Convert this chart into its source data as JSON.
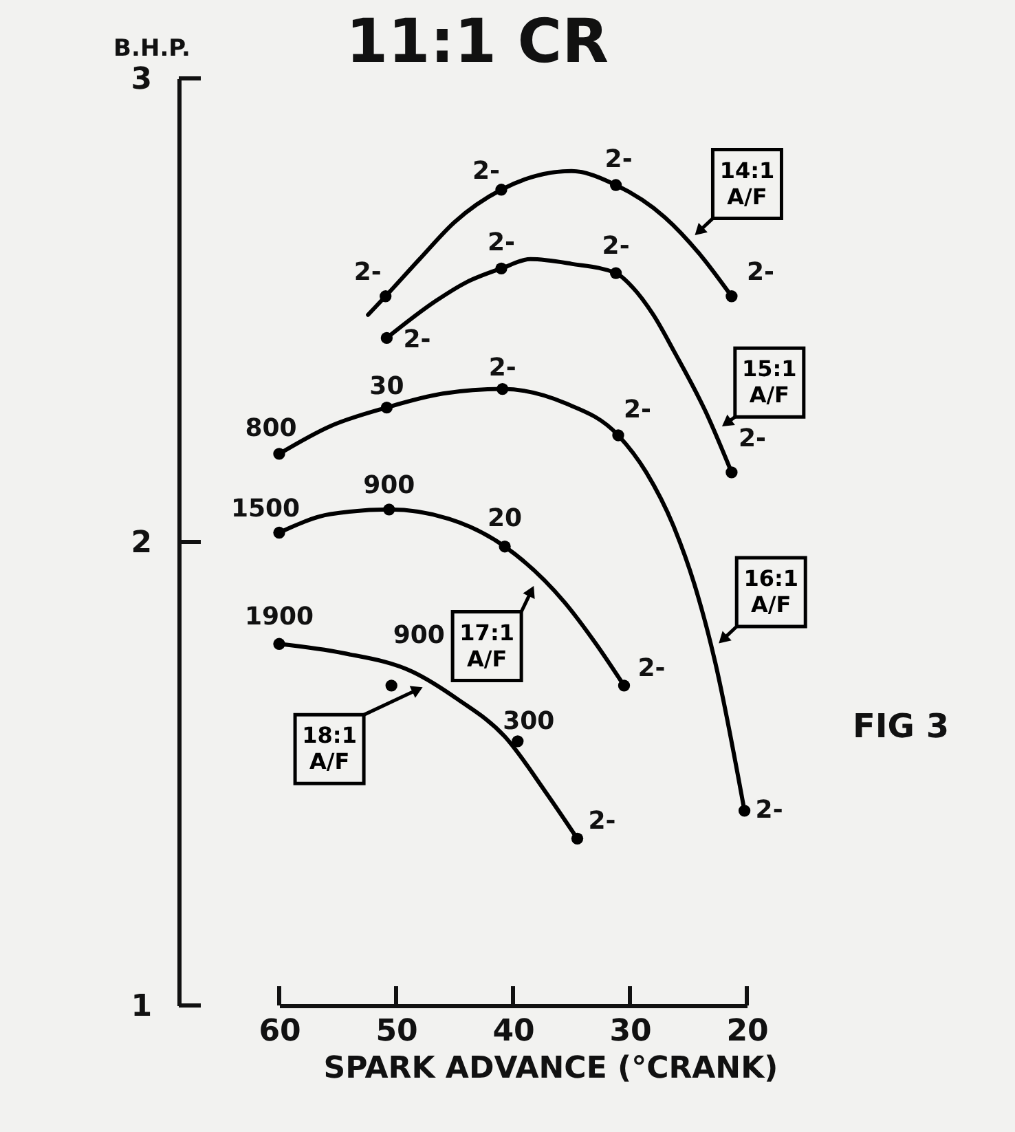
{
  "chart_data": {
    "type": "line",
    "title": "11:1 CR",
    "xlabel": "SPARK ADVANCE (°CRANK)",
    "ylabel": "B.H.P.",
    "xlim": [
      60,
      20
    ],
    "xticks": [
      60,
      50,
      40,
      30,
      20
    ],
    "ylim": [
      1,
      3
    ],
    "yticks": [
      1,
      2,
      3
    ],
    "series": [
      {
        "name": "14:1 A/F",
        "color": "#000000",
        "x": [
          52.4,
          50.9,
          48,
          45,
          41,
          38,
          35,
          31.2,
          27,
          24,
          21.3
        ],
        "values": [
          2.49,
          2.53,
          2.61,
          2.69,
          2.76,
          2.79,
          2.8,
          2.77,
          2.7,
          2.62,
          2.53
        ]
      },
      {
        "type": "scatter",
        "marker": "circle",
        "color": "#000000",
        "x": [
          50.9,
          41,
          31.2,
          21.3
        ],
        "values": [
          2.53,
          2.76,
          2.77,
          2.53
        ]
      },
      {
        "name": "15:1 A/F",
        "color": "#000000",
        "x": [
          50.8,
          46.6,
          44,
          41,
          38.5,
          35,
          31.2,
          29.8,
          28,
          26.2,
          23.5,
          21.3
        ],
        "values": [
          2.44,
          2.52,
          2.56,
          2.59,
          2.61,
          2.6,
          2.58,
          2.55,
          2.49,
          2.41,
          2.28,
          2.15
        ]
      },
      {
        "type": "scatter",
        "marker": "circle",
        "color": "#000000",
        "x": [
          50.8,
          41,
          31.2,
          21.3
        ],
        "values": [
          2.44,
          2.59,
          2.58,
          2.15
        ]
      },
      {
        "name": "16:1 A/F",
        "color": "#000000",
        "x": [
          60,
          55.6,
          50.8,
          46,
          40.9,
          35.6,
          31,
          28.6,
          26.2,
          24.5,
          22.7,
          20.2
        ],
        "values": [
          2.19,
          2.25,
          2.29,
          2.32,
          2.33,
          2.3,
          2.23,
          2.15,
          2.03,
          1.91,
          1.74,
          1.42
        ]
      },
      {
        "type": "scatter",
        "marker": "circle",
        "color": "#000000",
        "x": [
          60,
          50.8,
          40.9,
          31,
          20.2
        ],
        "values": [
          2.19,
          2.29,
          2.33,
          2.23,
          1.42
        ]
      },
      {
        "name": "17:1 A/F",
        "color": "#000000",
        "x": [
          60,
          55.6,
          50.6,
          45.5,
          40.7,
          35.6,
          32.9,
          30.5
        ],
        "values": [
          2.02,
          2.06,
          2.07,
          2.05,
          1.99,
          1.87,
          1.78,
          1.69
        ]
      },
      {
        "type": "scatter",
        "marker": "circle",
        "color": "#000000",
        "x": [
          60,
          50.6,
          40.7,
          30.5
        ],
        "values": [
          2.02,
          2.07,
          1.99,
          1.69
        ]
      },
      {
        "name": "18:1 A/F",
        "color": "#000000",
        "x": [
          60,
          54.5,
          48.6,
          44.7,
          40.7,
          37.2,
          34.5
        ],
        "values": [
          1.78,
          1.76,
          1.72,
          1.66,
          1.58,
          1.46,
          1.36
        ]
      },
      {
        "type": "scatter",
        "marker": "circle",
        "color": "#000000",
        "x": [
          60,
          50.4,
          39.6,
          34.5
        ],
        "values": [
          1.78,
          1.69,
          1.57,
          1.36
        ]
      }
    ],
    "annotations": [
      {
        "text": "2-",
        "x": 50.9,
        "y": 2.53
      },
      {
        "text": "2-",
        "x": 41,
        "y": 2.76
      },
      {
        "text": "2-",
        "x": 31.2,
        "y": 2.77
      },
      {
        "text": "2-",
        "x": 21.3,
        "y": 2.53
      },
      {
        "text": "2-",
        "x": 50.8,
        "y": 2.44
      },
      {
        "text": "2-",
        "x": 41,
        "y": 2.59
      },
      {
        "text": "2-",
        "x": 31.2,
        "y": 2.58
      },
      {
        "text": "2-",
        "x": 21.3,
        "y": 2.15
      },
      {
        "text": "800",
        "x": 60,
        "y": 2.19
      },
      {
        "text": "30",
        "x": 50.8,
        "y": 2.29
      },
      {
        "text": "2-",
        "x": 40.9,
        "y": 2.33
      },
      {
        "text": "2-",
        "x": 31,
        "y": 2.23
      },
      {
        "text": "2-",
        "x": 20.2,
        "y": 1.42
      },
      {
        "text": "1500",
        "x": 60,
        "y": 2.02
      },
      {
        "text": "900",
        "x": 50.6,
        "y": 2.07
      },
      {
        "text": "20",
        "x": 40.7,
        "y": 1.99
      },
      {
        "text": "2-",
        "x": 30.5,
        "y": 1.69
      },
      {
        "text": "1900",
        "x": 60,
        "y": 1.78
      },
      {
        "text": "900",
        "x": 50.4,
        "y": 1.69
      },
      {
        "text": "300",
        "x": 39.6,
        "y": 1.57
      },
      {
        "text": "2-",
        "x": 34.5,
        "y": 1.36
      },
      "FIG 3"
    ]
  }
}
